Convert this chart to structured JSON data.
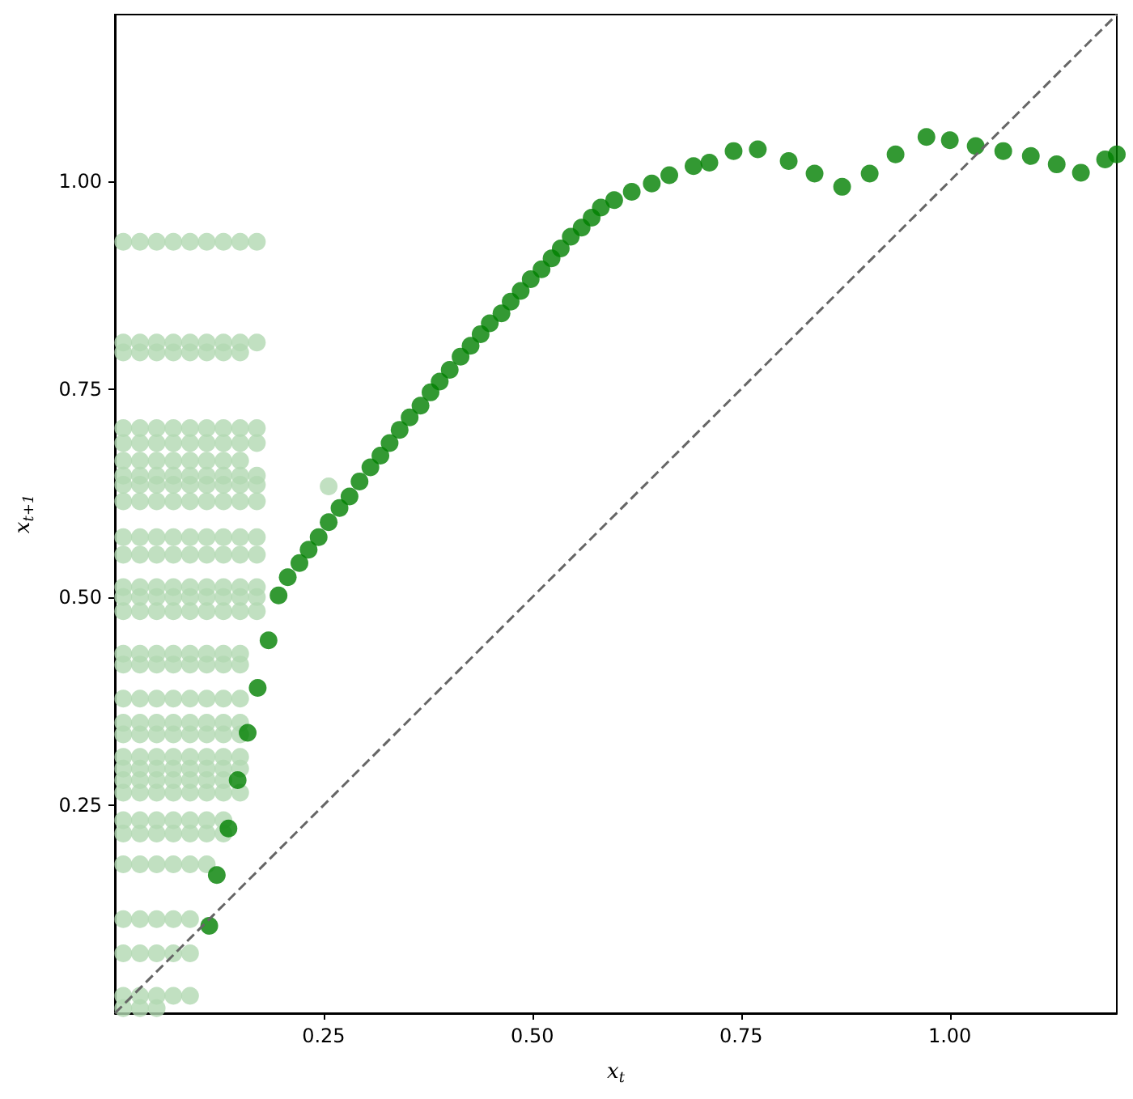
{
  "chart_data": {
    "type": "scatter",
    "xlabel": "x$_{t}$",
    "ylabel": "x$_{t+1}$",
    "xlim": [
      0,
      1.2
    ],
    "ylim": [
      0,
      1.2
    ],
    "xticks": [
      {
        "value": 0.25,
        "label": "0.25"
      },
      {
        "value": 0.5,
        "label": "0.50"
      },
      {
        "value": 0.75,
        "label": "0.75"
      },
      {
        "value": 1,
        "label": "1.00"
      }
    ],
    "yticks": [
      {
        "value": 0.25,
        "label": "0.25"
      },
      {
        "value": 0.5,
        "label": "0.50"
      },
      {
        "value": 0.75,
        "label": "0.75"
      },
      {
        "value": 1,
        "label": "1.00"
      }
    ],
    "marker": "circle",
    "series": [
      {
        "color": "#b2d8b2",
        "x": [
          0.01,
          0.03,
          0.05,
          0.07,
          0.09,
          0.11,
          0.13,
          0.15,
          0.17,
          0.01,
          0.03,
          0.05,
          0.07,
          0.09,
          0.11,
          0.13,
          0.15,
          0.17,
          0.01,
          0.03,
          0.05,
          0.07,
          0.09,
          0.11,
          0.13,
          0.15,
          0.01,
          0.03,
          0.05,
          0.07,
          0.09,
          0.11,
          0.13,
          0.15,
          0.17,
          0.01,
          0.03,
          0.05,
          0.07,
          0.09,
          0.11,
          0.13,
          0.15,
          0.17,
          0.01,
          0.03,
          0.05,
          0.07,
          0.09,
          0.11,
          0.13,
          0.15,
          0.01,
          0.03,
          0.05,
          0.07,
          0.09,
          0.11,
          0.13,
          0.15,
          0.17,
          0.01,
          0.03,
          0.05,
          0.07,
          0.09,
          0.11,
          0.13,
          0.15,
          0.17,
          0.01,
          0.03,
          0.05,
          0.07,
          0.09,
          0.11,
          0.13,
          0.15,
          0.17,
          0.01,
          0.03,
          0.05,
          0.07,
          0.09,
          0.11,
          0.13,
          0.15,
          0.17,
          0.01,
          0.03,
          0.05,
          0.07,
          0.09,
          0.11,
          0.13,
          0.15,
          0.17,
          0.01,
          0.03,
          0.05,
          0.07,
          0.09,
          0.11,
          0.13,
          0.15,
          0.17,
          0.01,
          0.03,
          0.05,
          0.07,
          0.09,
          0.11,
          0.13,
          0.15,
          0.17,
          0.01,
          0.03,
          0.05,
          0.07,
          0.09,
          0.11,
          0.13,
          0.15,
          0.17,
          0.01,
          0.03,
          0.05,
          0.07,
          0.09,
          0.11,
          0.13,
          0.15,
          0.01,
          0.03,
          0.05,
          0.07,
          0.09,
          0.11,
          0.13,
          0.15,
          0.01,
          0.03,
          0.05,
          0.07,
          0.09,
          0.11,
          0.13,
          0.15,
          0.01,
          0.03,
          0.05,
          0.07,
          0.09,
          0.11,
          0.13,
          0.15,
          0.01,
          0.03,
          0.05,
          0.07,
          0.09,
          0.11,
          0.13,
          0.15,
          0.01,
          0.03,
          0.05,
          0.07,
          0.09,
          0.11,
          0.13,
          0.15,
          0.01,
          0.03,
          0.05,
          0.07,
          0.09,
          0.11,
          0.13,
          0.15,
          0.01,
          0.03,
          0.05,
          0.07,
          0.09,
          0.11,
          0.13,
          0.01,
          0.03,
          0.05,
          0.07,
          0.09,
          0.11,
          0.13,
          0.15,
          0.01,
          0.03,
          0.05,
          0.07,
          0.09,
          0.11,
          0.13,
          0.01,
          0.03,
          0.05,
          0.07,
          0.09,
          0.11,
          0.13,
          0.01,
          0.03,
          0.05,
          0.07,
          0.09,
          0.11,
          0.01,
          0.03,
          0.05,
          0.07,
          0.09,
          0.01,
          0.03,
          0.05,
          0.07,
          0.09,
          0.01,
          0.03,
          0.05,
          0.07,
          0.09,
          0.01,
          0.03,
          0.05,
          0.256
        ],
        "values": [
          0.927,
          0.927,
          0.927,
          0.927,
          0.927,
          0.927,
          0.927,
          0.927,
          0.927,
          0.806,
          0.806,
          0.806,
          0.806,
          0.806,
          0.806,
          0.806,
          0.806,
          0.806,
          0.794,
          0.794,
          0.794,
          0.794,
          0.794,
          0.794,
          0.794,
          0.794,
          0.703,
          0.703,
          0.703,
          0.703,
          0.703,
          0.703,
          0.703,
          0.703,
          0.703,
          0.685,
          0.685,
          0.685,
          0.685,
          0.685,
          0.685,
          0.685,
          0.685,
          0.685,
          0.664,
          0.664,
          0.664,
          0.664,
          0.664,
          0.664,
          0.664,
          0.664,
          0.646,
          0.646,
          0.646,
          0.646,
          0.646,
          0.646,
          0.646,
          0.646,
          0.646,
          0.635,
          0.635,
          0.635,
          0.635,
          0.635,
          0.635,
          0.635,
          0.635,
          0.635,
          0.615,
          0.615,
          0.615,
          0.615,
          0.615,
          0.615,
          0.615,
          0.615,
          0.615,
          0.572,
          0.572,
          0.572,
          0.572,
          0.572,
          0.572,
          0.572,
          0.572,
          0.572,
          0.551,
          0.551,
          0.551,
          0.551,
          0.551,
          0.551,
          0.551,
          0.551,
          0.551,
          0.512,
          0.512,
          0.512,
          0.512,
          0.512,
          0.512,
          0.512,
          0.512,
          0.512,
          0.5,
          0.5,
          0.5,
          0.5,
          0.5,
          0.5,
          0.5,
          0.5,
          0.5,
          0.483,
          0.483,
          0.483,
          0.483,
          0.483,
          0.483,
          0.483,
          0.483,
          0.483,
          0.432,
          0.432,
          0.432,
          0.432,
          0.432,
          0.432,
          0.432,
          0.432,
          0.419,
          0.419,
          0.419,
          0.419,
          0.419,
          0.419,
          0.419,
          0.419,
          0.378,
          0.378,
          0.378,
          0.378,
          0.378,
          0.378,
          0.378,
          0.378,
          0.349,
          0.349,
          0.349,
          0.349,
          0.349,
          0.349,
          0.349,
          0.349,
          0.335,
          0.335,
          0.335,
          0.335,
          0.335,
          0.335,
          0.335,
          0.335,
          0.308,
          0.308,
          0.308,
          0.308,
          0.308,
          0.308,
          0.308,
          0.308,
          0.294,
          0.294,
          0.294,
          0.294,
          0.294,
          0.294,
          0.294,
          0.294,
          0.28,
          0.28,
          0.28,
          0.28,
          0.28,
          0.28,
          0.28,
          0.265,
          0.265,
          0.265,
          0.265,
          0.265,
          0.265,
          0.265,
          0.265,
          0.232,
          0.232,
          0.232,
          0.232,
          0.232,
          0.232,
          0.232,
          0.216,
          0.216,
          0.216,
          0.216,
          0.216,
          0.216,
          0.216,
          0.179,
          0.179,
          0.179,
          0.179,
          0.179,
          0.179,
          0.113,
          0.113,
          0.113,
          0.113,
          0.113,
          0.072,
          0.072,
          0.072,
          0.072,
          0.072,
          0.021,
          0.021,
          0.021,
          0.021,
          0.021,
          0.006,
          0.006,
          0.006,
          0.633
        ]
      },
      {
        "color": "#008000",
        "x": [
          0.113,
          0.122,
          0.136,
          0.147,
          0.159,
          0.171,
          0.184,
          0.196,
          0.207,
          0.221,
          0.232,
          0.244,
          0.256,
          0.269,
          0.281,
          0.293,
          0.306,
          0.318,
          0.329,
          0.341,
          0.353,
          0.366,
          0.378,
          0.389,
          0.401,
          0.414,
          0.426,
          0.438,
          0.449,
          0.463,
          0.474,
          0.486,
          0.498,
          0.511,
          0.523,
          0.534,
          0.546,
          0.559,
          0.571,
          0.582,
          0.598,
          0.619,
          0.643,
          0.664,
          0.693,
          0.712,
          0.741,
          0.77,
          0.807,
          0.838,
          0.871,
          0.904,
          0.935,
          0.972,
          1.0,
          1.031,
          1.064,
          1.097,
          1.128,
          1.157,
          1.186,
          1.2
        ],
        "values": [
          0.105,
          0.166,
          0.222,
          0.28,
          0.337,
          0.391,
          0.448,
          0.502,
          0.524,
          0.541,
          0.557,
          0.572,
          0.59,
          0.607,
          0.621,
          0.639,
          0.656,
          0.67,
          0.685,
          0.701,
          0.716,
          0.73,
          0.746,
          0.759,
          0.773,
          0.789,
          0.802,
          0.816,
          0.829,
          0.841,
          0.855,
          0.868,
          0.882,
          0.894,
          0.907,
          0.919,
          0.933,
          0.944,
          0.956,
          0.968,
          0.977,
          0.987,
          0.997,
          1.007,
          1.018,
          1.022,
          1.036,
          1.038,
          1.024,
          1.009,
          0.993,
          1.009,
          1.032,
          1.053,
          1.049,
          1.042,
          1.036,
          1.03,
          1.02,
          1.01,
          1.026,
          1.032
        ]
      },
      {
        "type": "line",
        "color": "#666666",
        "line_style": "dashed",
        "marker": "none",
        "x": [
          0,
          1.2
        ],
        "values": [
          0,
          1.2
        ]
      }
    ]
  }
}
